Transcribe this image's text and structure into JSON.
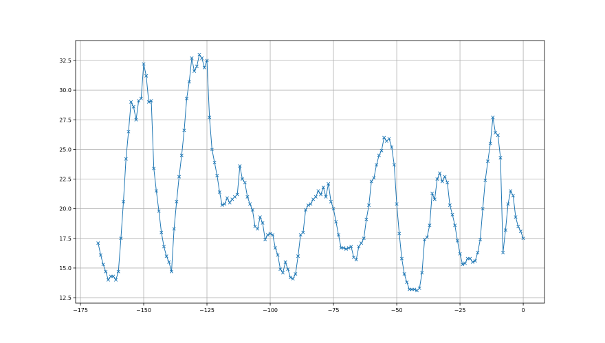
{
  "chart_data": {
    "type": "line",
    "title": "",
    "xlabel": "",
    "ylabel": "",
    "xlim": [
      -176.9,
      8.4
    ],
    "ylim": [
      12.04,
      34.18
    ],
    "grid": true,
    "marker": "x",
    "line_color": "#1f77b4",
    "xticks": [
      -175,
      -150,
      -125,
      -100,
      -75,
      -50,
      -25,
      0
    ],
    "xtick_labels": [
      "−175",
      "−150",
      "−125",
      "−100",
      "−75",
      "−50",
      "−25",
      "0"
    ],
    "yticks": [
      12.5,
      15.0,
      17.5,
      20.0,
      22.5,
      25.0,
      27.5,
      30.0,
      32.5
    ],
    "ytick_labels": [
      "12.5",
      "15.0",
      "17.5",
      "20.0",
      "22.5",
      "25.0",
      "27.5",
      "30.0",
      "32.5"
    ],
    "x": [
      -168,
      -167,
      -166,
      -165,
      -164,
      -163,
      -162,
      -161,
      -160,
      -159,
      -158,
      -157,
      -156,
      -155,
      -154,
      -153,
      -152,
      -151,
      -150,
      -149,
      -148,
      -147,
      -146,
      -145,
      -144,
      -143,
      -142,
      -141,
      -140,
      -139,
      -138,
      -137,
      -136,
      -135,
      -134,
      -133,
      -132,
      -131,
      -130,
      -129,
      -128,
      -127,
      -126,
      -125,
      -124,
      -123,
      -122,
      -121,
      -120,
      -119,
      -118,
      -117,
      -116,
      -115,
      -114,
      -113,
      -112,
      -111,
      -110,
      -109,
      -108,
      -107,
      -106,
      -105,
      -104,
      -103,
      -102,
      -101,
      -100,
      -99,
      -98,
      -97,
      -96,
      -95,
      -94,
      -93,
      -92,
      -91,
      -90,
      -89,
      -88,
      -87,
      -86,
      -85,
      -84,
      -83,
      -82,
      -81,
      -80,
      -79,
      -78,
      -77,
      -76,
      -75,
      -74,
      -73,
      -72,
      -71,
      -70,
      -69,
      -68,
      -67,
      -66,
      -65,
      -64,
      -63,
      -62,
      -61,
      -60,
      -59,
      -58,
      -57,
      -56,
      -55,
      -54,
      -53,
      -52,
      -51,
      -50,
      -49,
      -48,
      -47,
      -46,
      -45,
      -44,
      -43,
      -42,
      -41,
      -40,
      -39,
      -38,
      -37,
      -36,
      -35,
      -34,
      -33,
      -32,
      -31,
      -30,
      -29,
      -28,
      -27,
      -26,
      -25,
      -24,
      -23,
      -22,
      -21,
      -20,
      -19,
      -18,
      -17,
      -16,
      -15,
      -14,
      -13,
      -12,
      -11,
      -10,
      -9,
      -8,
      -7,
      -6,
      -5,
      -4,
      -3,
      -2,
      -1,
      0
    ],
    "y": [
      17.1,
      16.1,
      15.3,
      14.7,
      14.0,
      14.3,
      14.3,
      14.0,
      14.7,
      17.5,
      20.6,
      24.2,
      26.5,
      29.0,
      28.6,
      27.5,
      29.1,
      29.3,
      32.2,
      31.2,
      29.0,
      29.1,
      23.4,
      21.5,
      19.8,
      18.0,
      16.8,
      16.0,
      15.5,
      14.7,
      18.3,
      20.6,
      22.7,
      24.5,
      26.6,
      29.3,
      30.7,
      32.7,
      31.6,
      32.0,
      33.0,
      32.7,
      31.9,
      32.5,
      27.7,
      25.0,
      23.9,
      22.8,
      21.4,
      20.3,
      20.4,
      20.9,
      20.5,
      20.8,
      21.0,
      21.2,
      23.6,
      22.5,
      22.2,
      21.0,
      20.4,
      19.9,
      18.5,
      18.3,
      19.3,
      18.8,
      17.4,
      17.8,
      17.9,
      17.8,
      16.7,
      16.1,
      14.9,
      14.6,
      15.5,
      14.9,
      14.2,
      14.1,
      14.5,
      16.0,
      17.8,
      18.0,
      19.9,
      20.3,
      20.4,
      20.8,
      21.0,
      21.5,
      21.2,
      21.8,
      21.0,
      22.1,
      20.6,
      20.0,
      18.9,
      17.8,
      16.7,
      16.7,
      16.6,
      16.7,
      16.8,
      15.9,
      15.7,
      16.8,
      17.1,
      17.5,
      19.1,
      20.3,
      22.3,
      22.6,
      23.7,
      24.5,
      24.9,
      26.0,
      25.7,
      25.9,
      25.2,
      23.7,
      20.4,
      17.9,
      15.8,
      14.5,
      13.8,
      13.2,
      13.2,
      13.2,
      13.1,
      13.3,
      14.6,
      17.4,
      17.6,
      18.6,
      21.3,
      20.8,
      22.5,
      23.0,
      22.3,
      22.7,
      22.2,
      20.3,
      19.5,
      18.6,
      17.3,
      16.2,
      15.3,
      15.4,
      15.8,
      15.8,
      15.5,
      15.6,
      16.3,
      17.4,
      20.0,
      22.4,
      24.0,
      25.5,
      27.7,
      26.4,
      26.2,
      24.3,
      16.3,
      18.2,
      20.4,
      21.5,
      21.1,
      19.3,
      18.5,
      18.1,
      17.5
    ]
  }
}
